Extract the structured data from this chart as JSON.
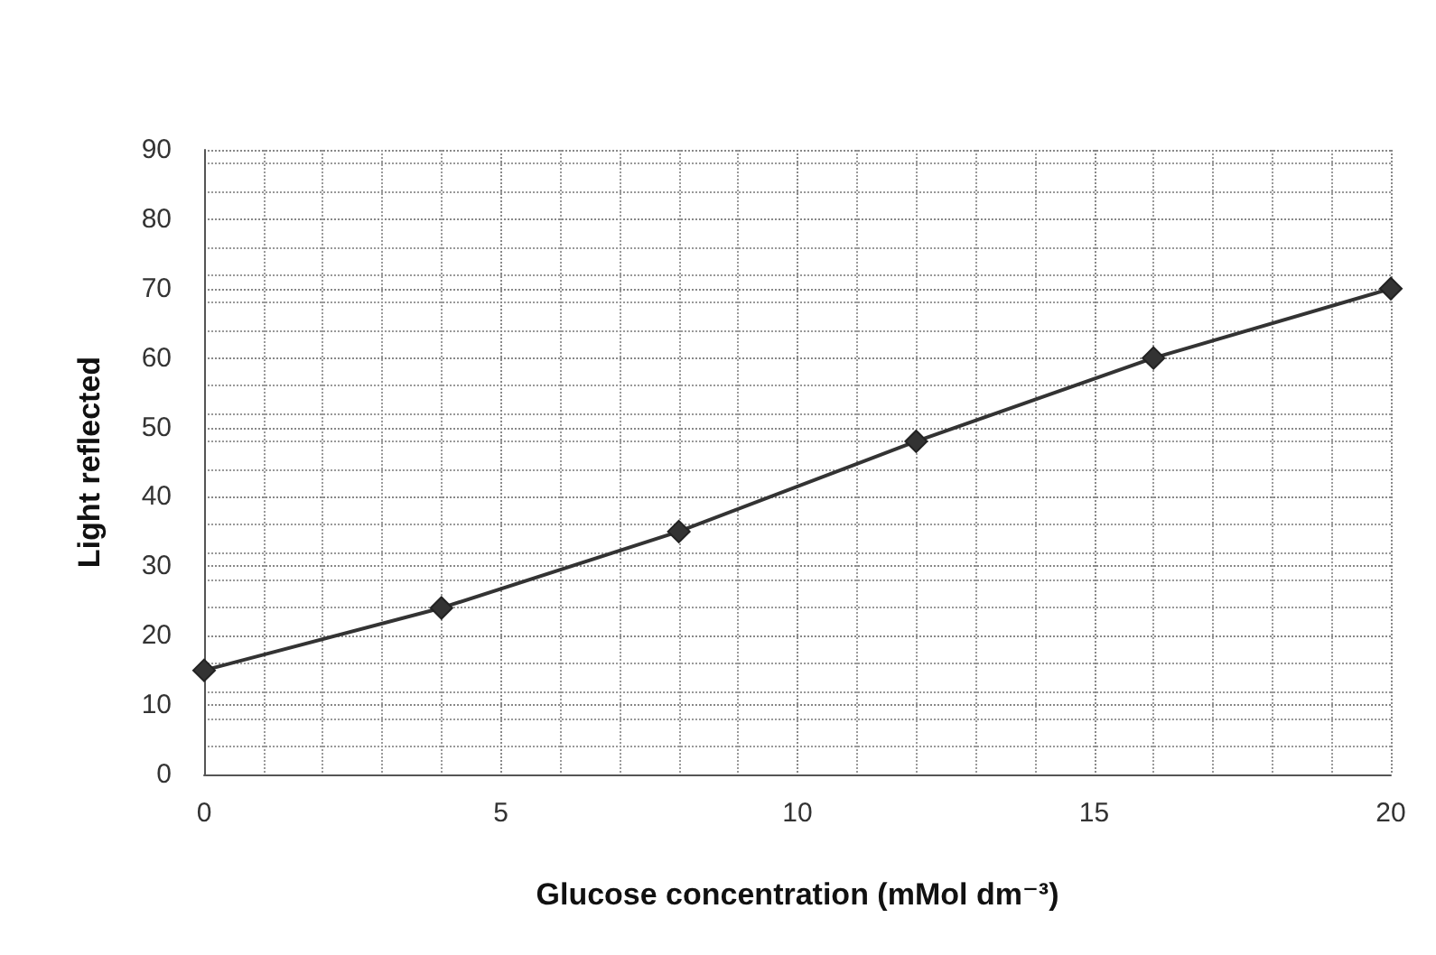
{
  "chart_data": {
    "type": "line",
    "xlabel": "Glucose concentration (mMol dm⁻³)",
    "ylabel": "Light reflected",
    "x": [
      0,
      4,
      8,
      12,
      16,
      20
    ],
    "series": [
      {
        "color": "#333333",
        "values": [
          15,
          24,
          35,
          48,
          60,
          70
        ]
      }
    ],
    "xlim": [
      0,
      20
    ],
    "xticks": [
      0,
      5,
      10,
      15,
      20
    ],
    "ylim": [
      0,
      90
    ],
    "yticks": [
      0,
      10,
      20,
      30,
      40,
      50,
      60,
      70,
      80,
      90
    ],
    "grid": true,
    "marker": "diamond",
    "line_style": "solid"
  }
}
